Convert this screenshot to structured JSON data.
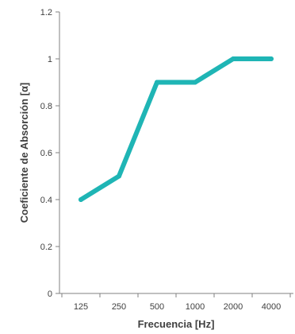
{
  "chart_data": {
    "type": "line",
    "categories": [
      "125",
      "250",
      "500",
      "1000",
      "2000",
      "4000"
    ],
    "series": [
      {
        "values": [
          0.4,
          0.5,
          0.9,
          0.9,
          1.0,
          1.0
        ]
      }
    ],
    "xlabel": "Frecuencia [Hz]",
    "ylabel": "Coeficiente de Absorción [α]",
    "ylim": [
      0,
      1.2
    ],
    "yticks": [
      "0",
      "0.2",
      "0.4",
      "0.6",
      "0.8",
      "1",
      "1.2"
    ],
    "grid": false,
    "colors": {
      "line": "#1fb5b5",
      "axis": "#808080",
      "text": "#404040"
    }
  }
}
